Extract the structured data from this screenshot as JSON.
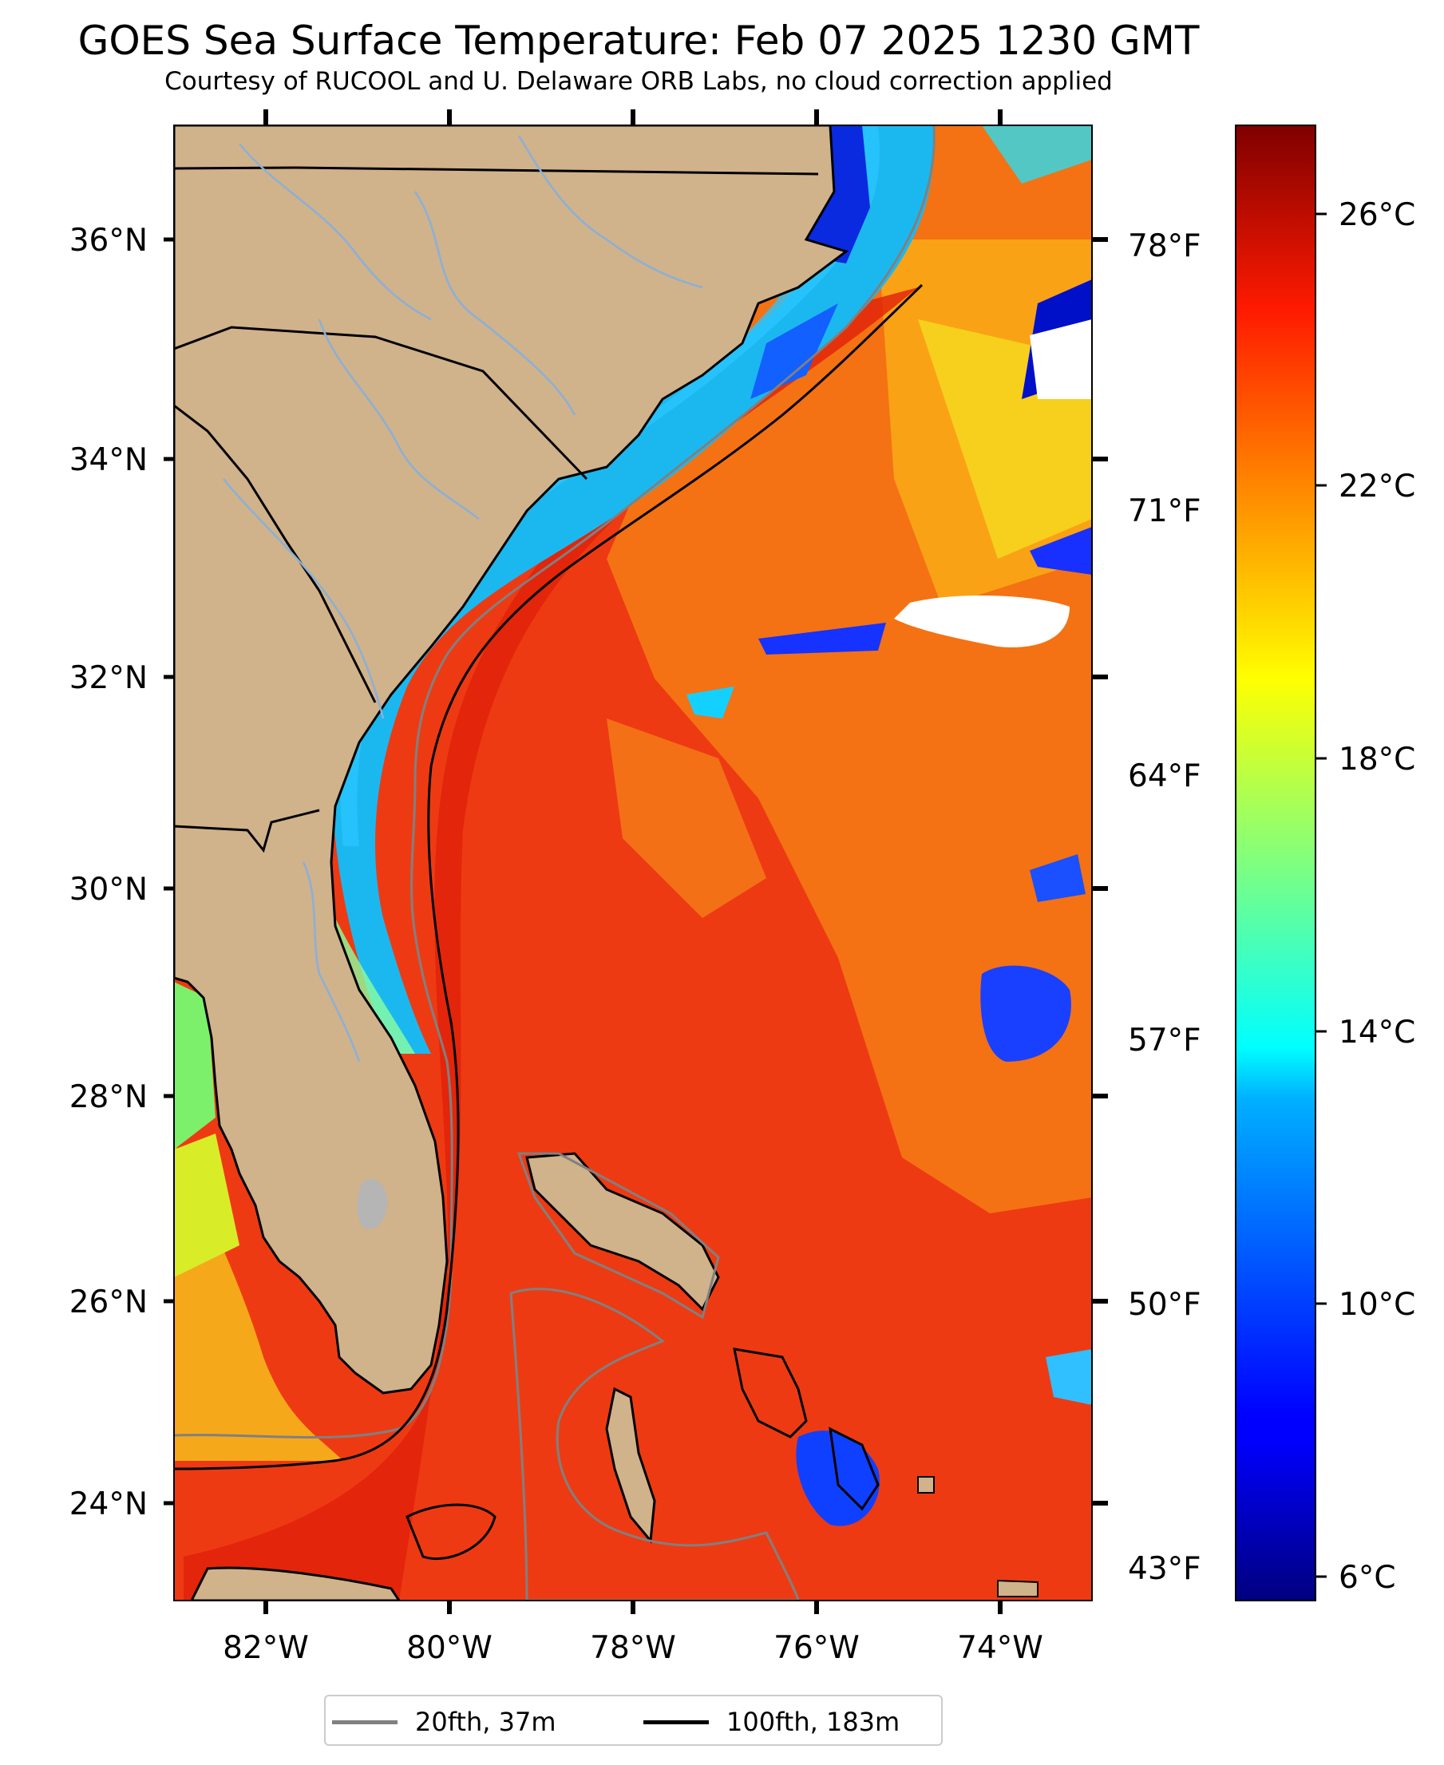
{
  "title": "GOES Sea Surface Temperature: Feb 07 2025 1230 GMT",
  "subtitle": "Courtesy of RUCOOL and U. Delaware ORB Labs, no cloud correction applied",
  "map": {
    "lon_range": [
      -83,
      -73
    ],
    "lat_range": [
      23.1,
      37
    ],
    "lat_tick_labels": [
      "36°N",
      "34°N",
      "32°N",
      "30°N",
      "28°N",
      "26°N",
      "24°N"
    ],
    "lon_tick_labels": [
      "82°W",
      "80°W",
      "78°W",
      "76°W",
      "74°W"
    ],
    "fahrenheit_labels": [
      "78°F",
      "71°F",
      "64°F",
      "57°F",
      "50°F",
      "43°F"
    ]
  },
  "colorbar": {
    "colormap": "jet",
    "range_celsius": [
      5.5,
      27.8
    ],
    "tick_labels": [
      "26°C",
      "22°C",
      "18°C",
      "14°C",
      "10°C",
      "6°C"
    ]
  },
  "legend": {
    "placement": "bottom-center",
    "items": [
      {
        "label": "20fth, 37m",
        "color": "#808080"
      },
      {
        "label": "100fth, 183m",
        "color": "#000000"
      }
    ]
  },
  "colors": {
    "land": "#d0b28b",
    "warm_water": "#e8250d",
    "cold_water": "#0f1fd8",
    "rivers": "#8ab0d8"
  }
}
